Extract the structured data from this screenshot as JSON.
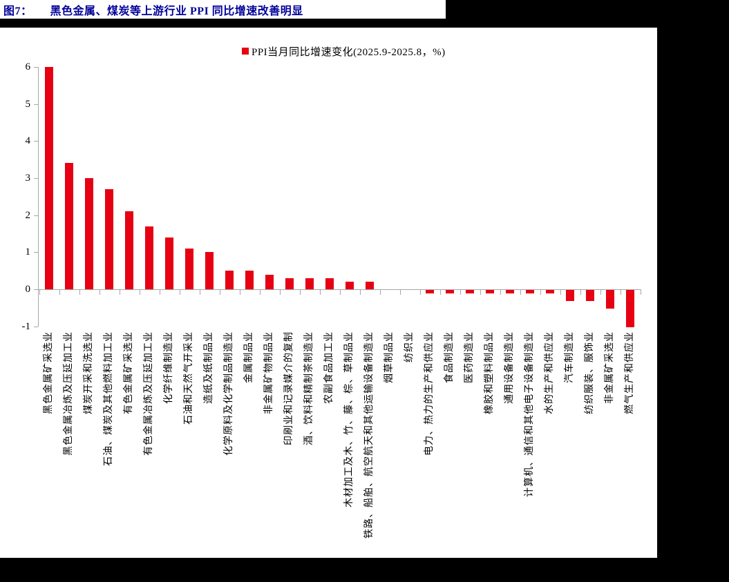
{
  "page": {
    "title_prefix": "图7：",
    "title": "黑色金属、煤炭等上游行业 PPI 同比增速改善明显"
  },
  "colors": {
    "title_navy": "#000099",
    "bar_red": "#e60012",
    "axis_gray": "#a6a6a6",
    "page_white": "#ffffff",
    "surround_black": "#000000"
  },
  "chart_data": {
    "type": "bar",
    "title": "图7： 黑色金属、煤炭等上游行业 PPI 同比增速改善明显",
    "legend": "PPI当月同比增速变化(2025.9-2025.8，%)",
    "legend_position": "top-center",
    "grid": false,
    "bar_color": "#e60012",
    "axis_color": "#a6a6a6",
    "ylim": [
      -1,
      6
    ],
    "yticks": [
      6,
      5,
      4,
      3,
      2,
      1,
      0,
      -1
    ],
    "xlabel": "",
    "ylabel": "",
    "categories": [
      "黑色金属矿采选业",
      "黑色金属冶炼及压延加工业",
      "煤炭开采和洗选业",
      "石油、煤炭及其他燃料加工业",
      "有色金属矿采选业",
      "有色金属冶炼及压延加工业",
      "化学纤维制造业",
      "石油和天然气开采业",
      "造纸及纸制品业",
      "化学原料及化学制品制造业",
      "金属制品业",
      "非金属矿物制品业",
      "印刷业和记录媒介的复制",
      "酒、饮料和精制茶制造业",
      "农副食品加工业",
      "木材加工及木、竹、藤、棕、草制品业",
      "铁路、船舶、航空航天和其他运输设备制造业",
      "烟草制品业",
      "纺织业",
      "电力、热力的生产和供应业",
      "食品制造业",
      "医药制造业",
      "橡胶和塑料制品业",
      "通用设备制造业",
      "计算机、通信和其他电子设备制造业",
      "水的生产和供应业",
      "汽车制造业",
      "纺织服装、服饰业",
      "非金属矿采选业",
      "燃气生产和供应业"
    ],
    "values": [
      6.0,
      3.4,
      3.0,
      2.7,
      2.1,
      1.7,
      1.4,
      1.1,
      1.0,
      0.5,
      0.5,
      0.4,
      0.3,
      0.3,
      0.3,
      0.2,
      0.2,
      0.0,
      0.0,
      -0.1,
      -0.1,
      -0.1,
      -0.1,
      -0.1,
      -0.1,
      -0.1,
      -0.3,
      -0.3,
      -0.5,
      -1.0
    ]
  }
}
